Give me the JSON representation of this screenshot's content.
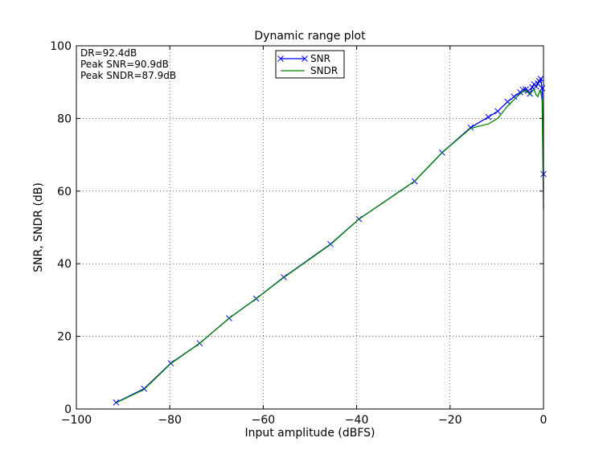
{
  "chart_data": {
    "type": "line",
    "title": "Dynamic range plot",
    "xlabel": "Input amplitude (dBFS)",
    "ylabel": "SNR, SNDR (dB)",
    "xlim": [
      -100,
      0
    ],
    "ylim": [
      0,
      100
    ],
    "xticks": [
      -100,
      -80,
      -60,
      -40,
      -20,
      0
    ],
    "yticks": [
      0,
      20,
      40,
      60,
      80,
      100
    ],
    "xtick_labels": [
      "−100",
      "−80",
      "−60",
      "−40",
      "−20",
      "0"
    ],
    "ytick_labels": [
      "0",
      "20",
      "40",
      "60",
      "80",
      "100"
    ],
    "grid": true,
    "legend": "top-center",
    "annotations": [
      "DR=92.4dB",
      "Peak SNR=90.9dB",
      "Peak SNDR=87.9dB"
    ],
    "series": [
      {
        "name": "SNR",
        "color": "#0000ff",
        "marker": "x",
        "x": [
          -91.5,
          -85.5,
          -79.8,
          -73.6,
          -67.3,
          -61.5,
          -55.6,
          -45.6,
          -39.5,
          -27.6,
          -21.7,
          -15.6,
          -11.8,
          -9.8,
          -7.7,
          -6.3,
          -5.0,
          -4.4,
          -3.8,
          -3.3,
          -2.9,
          -2.4,
          -2.0,
          -1.6,
          -1.2,
          -0.9,
          -0.6,
          -0.3,
          0
        ],
        "y": [
          1.8,
          5.6,
          12.6,
          18.1,
          25.0,
          30.4,
          36.3,
          45.4,
          52.3,
          62.7,
          70.6,
          77.5,
          80.4,
          82.0,
          84.6,
          86.0,
          87.2,
          87.9,
          88.0,
          87.6,
          86.8,
          88.6,
          89.4,
          88.8,
          89.6,
          90.3,
          90.9,
          88.3,
          64.7
        ]
      },
      {
        "name": "SNDR",
        "color": "#008000",
        "marker": "none",
        "x": [
          -91.5,
          -85.5,
          -79.8,
          -73.6,
          -67.3,
          -61.5,
          -55.6,
          -45.6,
          -39.5,
          -27.6,
          -21.7,
          -15.6,
          -11.8,
          -9.8,
          -7.7,
          -6.3,
          -5.0,
          -4.4,
          -3.8,
          -3.3,
          -2.9,
          -2.4,
          -2.0,
          -1.6,
          -1.2,
          -0.9,
          -0.6,
          -0.3,
          0
        ],
        "y": [
          1.7,
          5.4,
          12.5,
          18.1,
          25.0,
          30.4,
          36.2,
          45.3,
          52.3,
          62.7,
          70.6,
          77.3,
          78.5,
          80.0,
          83.4,
          85.2,
          86.8,
          87.4,
          87.7,
          87.2,
          86.6,
          87.6,
          87.9,
          86.5,
          86.0,
          87.3,
          87.5,
          85.0,
          55.0
        ]
      }
    ]
  }
}
